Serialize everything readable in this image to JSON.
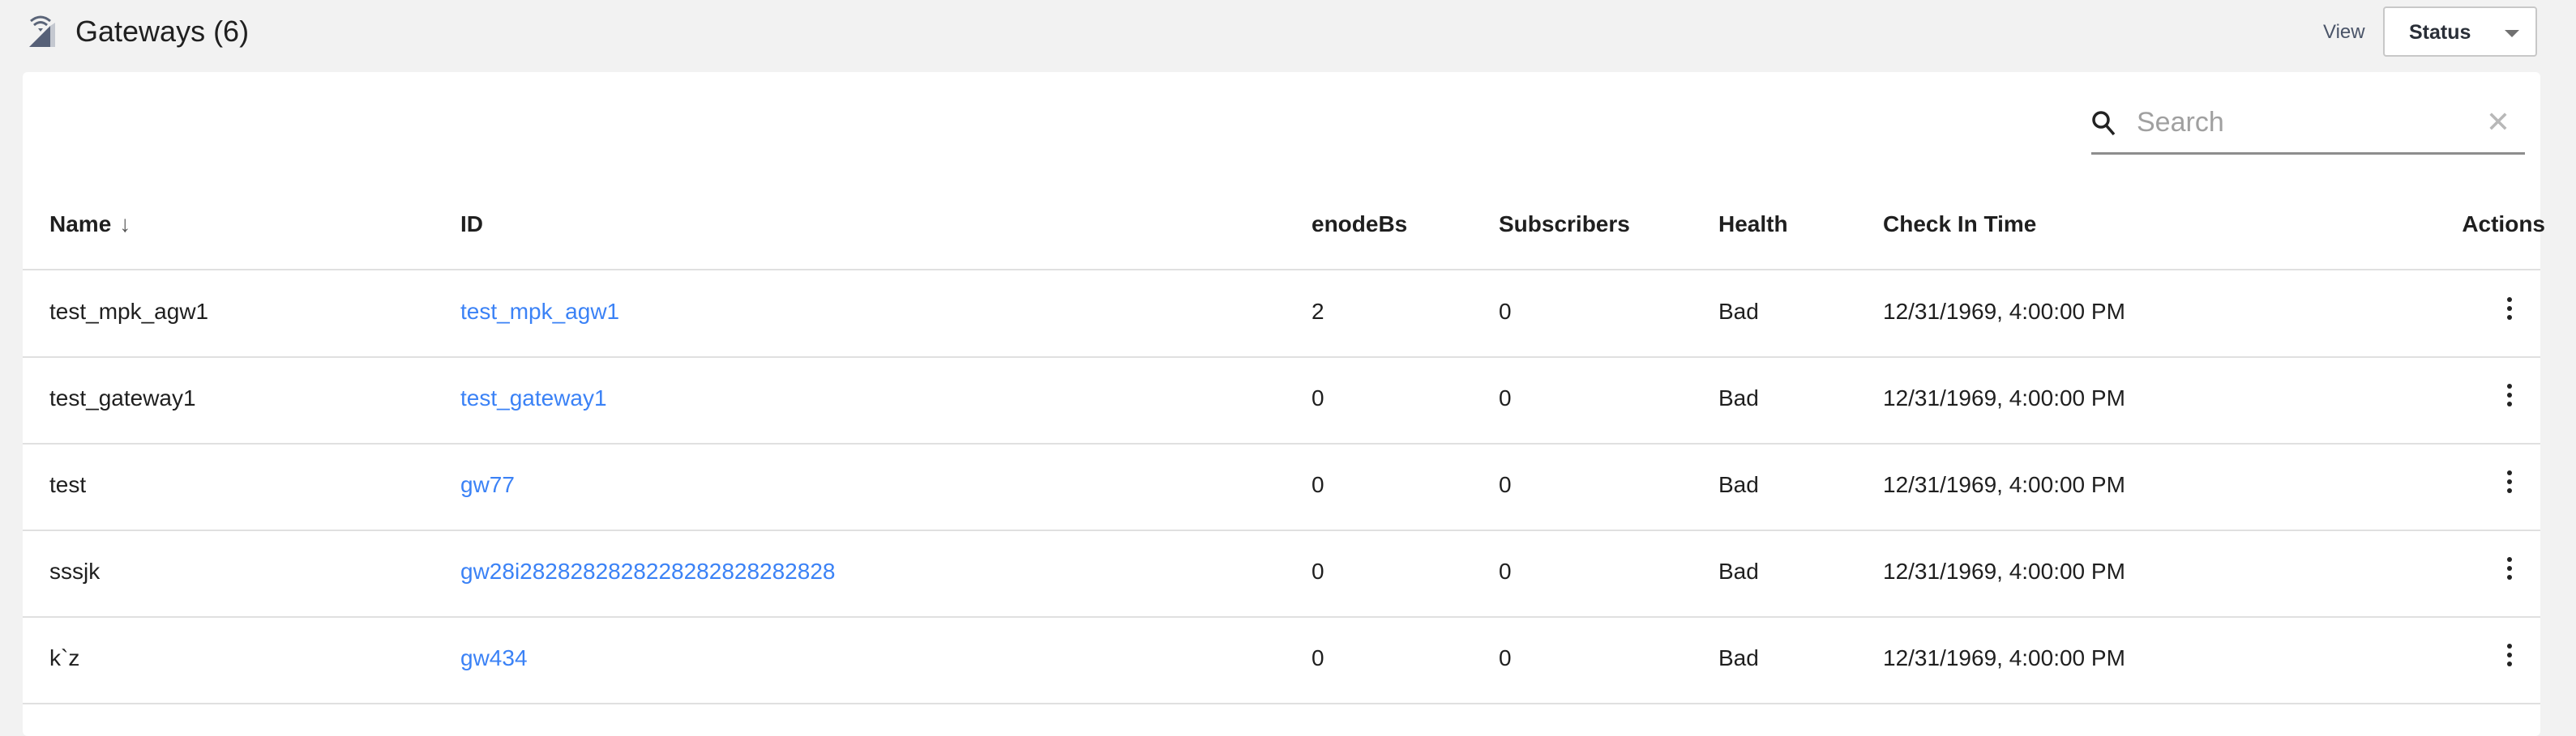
{
  "header": {
    "title": "Gateways (6)",
    "icon": "gateway-signal-icon",
    "view_label": "View",
    "view_select": "Status"
  },
  "search": {
    "placeholder": "Search",
    "value": ""
  },
  "table": {
    "columns": [
      "Name",
      "ID",
      "enodeBs",
      "Subscribers",
      "Health",
      "Check In Time",
      "Actions"
    ],
    "sort_indicator": "↓",
    "rows": [
      {
        "name": "test_mpk_agw1",
        "id": "test_mpk_agw1",
        "enodebs": "2",
        "subscribers": "0",
        "health": "Bad",
        "checkin": "12/31/1969, 4:00:00 PM"
      },
      {
        "name": "test_gateway1",
        "id": "test_gateway1",
        "enodebs": "0",
        "subscribers": "0",
        "health": "Bad",
        "checkin": "12/31/1969, 4:00:00 PM"
      },
      {
        "name": "test",
        "id": "gw77",
        "enodebs": "0",
        "subscribers": "0",
        "health": "Bad",
        "checkin": "12/31/1969, 4:00:00 PM"
      },
      {
        "name": "sssjk",
        "id": "gw28i2828282828228282828282828",
        "enodebs": "0",
        "subscribers": "0",
        "health": "Bad",
        "checkin": "12/31/1969, 4:00:00 PM"
      },
      {
        "name": "k`z",
        "id": "gw434",
        "enodebs": "0",
        "subscribers": "0",
        "health": "Bad",
        "checkin": "12/31/1969, 4:00:00 PM"
      }
    ]
  },
  "colors": {
    "link": "#3b82f6",
    "background": "#f2f2f2"
  }
}
